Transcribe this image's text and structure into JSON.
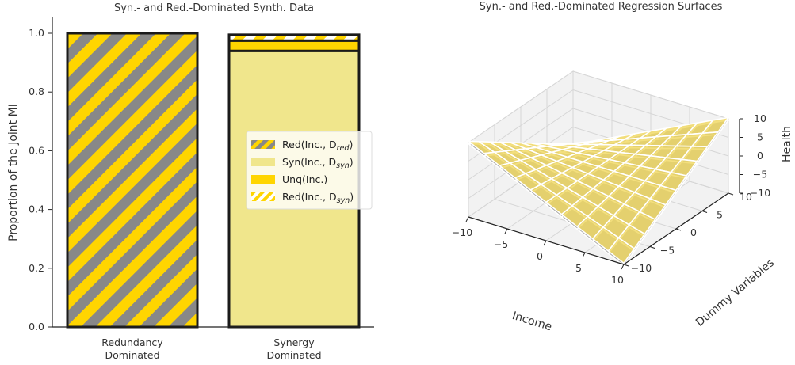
{
  "chart_data": [
    {
      "type": "bar",
      "stacked": true,
      "title": "Syn.- and Red.-Dominated Synth. Data",
      "xlabel": "",
      "ylabel": "Proportion of the Joint MI",
      "ylim": [
        0,
        1.05
      ],
      "yticks": [
        "0.0",
        "0.2",
        "0.4",
        "0.6",
        "0.8",
        "1.0"
      ],
      "categories": [
        {
          "line1": "Redundancy",
          "line2": "Dominated"
        },
        {
          "line1": "Synergy",
          "line2": "Dominated"
        }
      ],
      "series": [
        {
          "name": "Red(Inc., D_red)",
          "legend_main": "Red(Inc., D",
          "legend_sub": "red",
          "values": [
            1.0,
            0.0
          ],
          "colors": [
            "#ffd500",
            "#888888"
          ],
          "hatch": "stripe-gray"
        },
        {
          "name": "Syn(Inc., D_syn)",
          "legend_main": "Syn(Inc., D",
          "legend_sub": "syn",
          "values": [
            0.0,
            0.94
          ],
          "colors": [
            "#f0e68c"
          ],
          "hatch": "none"
        },
        {
          "name": "Unq(Inc.)",
          "legend_main": "Unq(Inc.)",
          "legend_sub": "",
          "values": [
            0.0,
            0.035
          ],
          "colors": [
            "#ffd500"
          ],
          "hatch": "none"
        },
        {
          "name": "Red(Inc., D_syn)",
          "legend_main": "Red(Inc., D",
          "legend_sub": "syn",
          "values": [
            0.0,
            0.02
          ],
          "colors": [
            "#ffd500",
            "#ffffff"
          ],
          "hatch": "stripe-white"
        }
      ],
      "legend": "center-right"
    },
    {
      "type": "surface3d",
      "title": "Syn.- and Red.-Dominated Regression Surfaces",
      "xlabel": "Income",
      "ylabel": "Dummy Variables",
      "zlabel": "Health",
      "xlim": [
        -10,
        10
      ],
      "ylim": [
        -10,
        10
      ],
      "zlim": [
        -10,
        10
      ],
      "xticks": [
        -10,
        -5,
        0,
        5,
        10
      ],
      "yticks": [
        -10,
        -5,
        0,
        5,
        10
      ],
      "zticks": [
        -10,
        -5,
        0,
        5,
        10
      ],
      "surfaces": [
        {
          "formula": "z = x*y/10",
          "color": "#a9a9a9"
        },
        {
          "formula": "z = x*y/10",
          "color": "#f0d860"
        }
      ],
      "grid": true
    }
  ]
}
